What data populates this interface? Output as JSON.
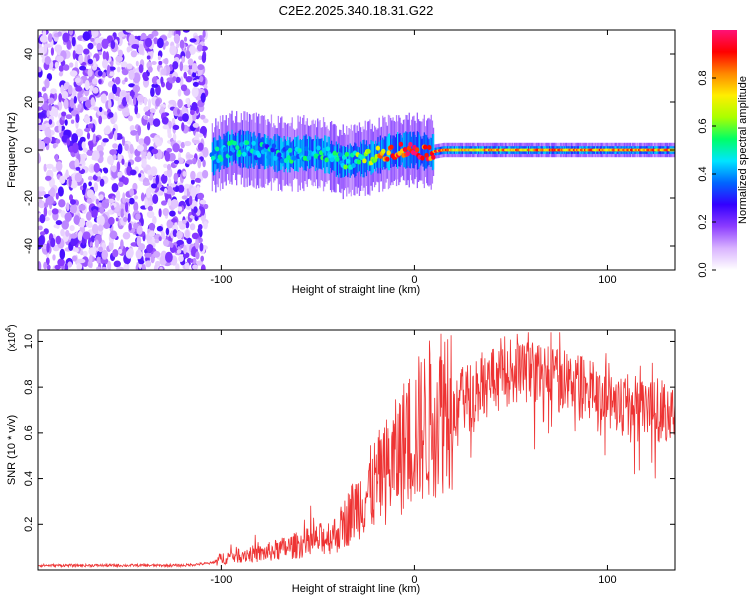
{
  "title": "C2E2.2025.340.18.31.G22",
  "chart_data": [
    {
      "type": "heatmap",
      "title": "C2E2.2025.340.18.31.G22",
      "xlabel": "Height of straight line (km)",
      "ylabel": "Frequency (Hz)",
      "xlim": [
        -195,
        135
      ],
      "ylim": [
        -50,
        50
      ],
      "x_ticks": [
        -100,
        0,
        100
      ],
      "x_tick_labels": [
        "-100",
        "0",
        "100"
      ],
      "y_ticks": [
        -40,
        -20,
        0,
        20,
        40
      ],
      "y_tick_labels": [
        "-40",
        "-20",
        "0",
        "20",
        "40"
      ],
      "colorbar": {
        "label": "Normalized spectral amplitude",
        "range": [
          0,
          1
        ],
        "ticks": [
          0.0,
          0.2,
          0.4,
          0.6,
          0.8
        ],
        "tick_labels": [
          "0.0",
          "0.2",
          "0.4",
          "0.6",
          "0.8"
        ],
        "colors": [
          "#ffffff",
          "#d9b3ff",
          "#8c3cff",
          "#3300ff",
          "#0066ff",
          "#00e5ff",
          "#00ff66",
          "#aaff00",
          "#ffee00",
          "#ff8800",
          "#ff0000",
          "#ff1177"
        ]
      },
      "noise_region_x": [
        -195,
        -108
      ],
      "signal_track": [
        {
          "x": -105,
          "freq": -3,
          "amp": 0.45
        },
        {
          "x": -95,
          "freq": 1,
          "amp": 0.45
        },
        {
          "x": -85,
          "freq": 0,
          "amp": 0.4
        },
        {
          "x": -75,
          "freq": -1,
          "amp": 0.4
        },
        {
          "x": -65,
          "freq": -2,
          "amp": 0.45
        },
        {
          "x": -55,
          "freq": -1,
          "amp": 0.45
        },
        {
          "x": -45,
          "freq": -2,
          "amp": 0.45
        },
        {
          "x": -38,
          "freq": -5,
          "amp": 0.5
        },
        {
          "x": -30,
          "freq": -4,
          "amp": 0.55
        },
        {
          "x": -22,
          "freq": -3,
          "amp": 0.65
        },
        {
          "x": -15,
          "freq": -1,
          "amp": 0.8
        },
        {
          "x": -8,
          "freq": 0,
          "amp": 0.85
        },
        {
          "x": 0,
          "freq": 0,
          "amp": 0.95
        },
        {
          "x": 8,
          "freq": -1,
          "amp": 0.9
        },
        {
          "x": 15,
          "freq": 0,
          "amp": 0.8
        },
        {
          "x": 40,
          "freq": 0,
          "amp": 0.75
        },
        {
          "x": 70,
          "freq": 0,
          "amp": 0.8
        },
        {
          "x": 100,
          "freq": 0,
          "amp": 0.8
        },
        {
          "x": 135,
          "freq": 0,
          "amp": 0.8
        }
      ]
    },
    {
      "type": "line",
      "xlabel": "Height of straight line (km)",
      "ylabel": "SNR (10 * v/v)",
      "y_scale_label": "(x10",
      "y_scale_exponent": "4",
      "y_scale_close": ")",
      "xlim": [
        -195,
        135
      ],
      "ylim": [
        0,
        1.05
      ],
      "x_ticks": [
        -100,
        0,
        100
      ],
      "x_tick_labels": [
        "-100",
        "0",
        "100"
      ],
      "y_ticks": [
        0.2,
        0.4,
        0.6,
        0.8,
        1.0
      ],
      "y_tick_labels": [
        "0.2",
        "0.4",
        "0.6",
        "0.8",
        "1.0"
      ],
      "series": [
        {
          "name": "SNR",
          "color": "#ee3333",
          "x": [
            -195,
            -160,
            -120,
            -105,
            -100,
            -90,
            -80,
            -70,
            -60,
            -50,
            -40,
            -35,
            -30,
            -25,
            -20,
            -15,
            -10,
            -5,
            0,
            5,
            10,
            20,
            30,
            40,
            50,
            60,
            70,
            80,
            90,
            100,
            110,
            120,
            135
          ],
          "y": [
            0.02,
            0.02,
            0.02,
            0.03,
            0.05,
            0.07,
            0.07,
            0.09,
            0.11,
            0.13,
            0.16,
            0.22,
            0.28,
            0.33,
            0.38,
            0.43,
            0.48,
            0.55,
            0.6,
            0.63,
            0.68,
            0.78,
            0.85,
            0.92,
            0.95,
            0.95,
            0.93,
            0.9,
            0.86,
            0.82,
            0.8,
            0.78,
            0.76
          ]
        }
      ]
    }
  ]
}
